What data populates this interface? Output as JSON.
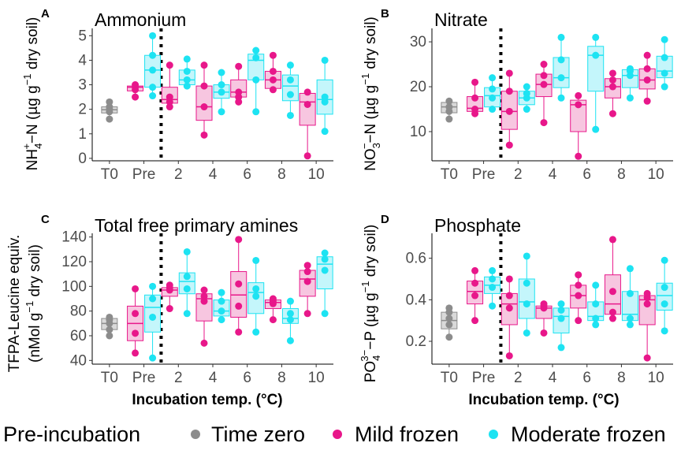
{
  "legend": {
    "title": "Pre-incubation",
    "items": [
      {
        "name": "Time zero",
        "color": "#8c8c8c"
      },
      {
        "name": "Mild frozen",
        "color": "#e8178a"
      },
      {
        "name": "Moderate frozen",
        "color": "#1de3f2"
      }
    ]
  },
  "chart_data": [
    {
      "type": "box",
      "letter": "A",
      "title": "Ammonium",
      "ylabel": "NH₄⁺−N (µg g⁻¹ dry soil)",
      "ylabel_parts": [
        "NH",
        "4",
        "+",
        "−N (µg g",
        "−1",
        " dry soil)"
      ],
      "xlabel": "",
      "categories": [
        "T0",
        "Pre",
        "2",
        "4",
        "6",
        "8",
        "10"
      ],
      "ylim": [
        -0.1,
        5.3
      ],
      "yticks": [
        0,
        1,
        2,
        3,
        4,
        5
      ],
      "divider_after": "Pre",
      "groups": [
        {
          "category": "T0",
          "series": "Time zero",
          "min": 1.6,
          "q1": 1.85,
          "median": 1.98,
          "q3": 2.1,
          "max": 2.3,
          "points": [
            1.6,
            1.9,
            2.0,
            2.1,
            2.3
          ]
        },
        {
          "category": "Pre",
          "series": "Mild frozen",
          "min": 2.5,
          "q1": 2.75,
          "median": 2.9,
          "q3": 2.95,
          "max": 3.0,
          "points": [
            2.5,
            2.8,
            2.9,
            3.0
          ]
        },
        {
          "category": "Pre",
          "series": "Moderate frozen",
          "min": 2.55,
          "q1": 2.9,
          "median": 3.6,
          "q3": 4.2,
          "max": 5.0,
          "points": [
            2.55,
            2.9,
            3.6,
            4.2,
            5.0
          ]
        },
        {
          "category": "2",
          "series": "Mild frozen",
          "min": 2.1,
          "q1": 2.25,
          "median": 2.4,
          "q3": 2.9,
          "max": 3.8,
          "points": [
            2.1,
            2.3,
            2.5,
            3.8
          ]
        },
        {
          "category": "2",
          "series": "Moderate frozen",
          "min": 2.95,
          "q1": 3.0,
          "median": 3.2,
          "q3": 3.6,
          "max": 4.05,
          "points": [
            2.95,
            3.2,
            3.55,
            4.05
          ]
        },
        {
          "category": "4",
          "series": "Mild frozen",
          "min": 0.95,
          "q1": 1.55,
          "median": 2.1,
          "q3": 2.95,
          "max": 3.8,
          "points": [
            0.95,
            2.1,
            2.95,
            3.8
          ]
        },
        {
          "category": "4",
          "series": "Moderate frozen",
          "min": 1.9,
          "q1": 2.45,
          "median": 2.7,
          "q3": 3.0,
          "max": 3.5,
          "points": [
            1.9,
            2.7,
            3.0,
            3.5
          ]
        },
        {
          "category": "6",
          "series": "Mild frozen",
          "min": 2.3,
          "q1": 2.5,
          "median": 2.7,
          "q3": 3.2,
          "max": 3.75,
          "points": [
            2.3,
            2.5,
            2.7,
            3.75
          ]
        },
        {
          "category": "6",
          "series": "Moderate frozen",
          "min": 1.9,
          "q1": 3.2,
          "median": 4.0,
          "q3": 4.25,
          "max": 4.4,
          "points": [
            1.9,
            3.2,
            4.1,
            4.4
          ]
        },
        {
          "category": "8",
          "series": "Mild frozen",
          "min": 2.8,
          "q1": 2.85,
          "median": 3.2,
          "q3": 3.55,
          "max": 4.2,
          "points": [
            2.8,
            3.2,
            3.55,
            4.2
          ]
        },
        {
          "category": "8",
          "series": "Moderate frozen",
          "min": 1.75,
          "q1": 2.35,
          "median": 2.95,
          "q3": 3.4,
          "max": 3.8,
          "points": [
            1.75,
            2.6,
            3.2,
            3.8
          ]
        },
        {
          "category": "10",
          "series": "Mild frozen",
          "min": 0.1,
          "q1": 1.35,
          "median": 2.3,
          "q3": 2.65,
          "max": 2.7,
          "points": [
            0.1,
            2.2,
            2.7
          ]
        },
        {
          "category": "10",
          "series": "Moderate frozen",
          "min": 1.1,
          "q1": 1.8,
          "median": 2.4,
          "q3": 3.2,
          "max": 4.0,
          "points": [
            1.1,
            2.3,
            2.5,
            4.0
          ]
        }
      ]
    },
    {
      "type": "box",
      "letter": "B",
      "title": "Nitrate",
      "ylabel": "NO₃⁻−N (µg g⁻¹ dry soil)",
      "ylabel_parts": [
        "NO",
        "3",
        "−",
        "−N (µg g",
        "−1",
        " dry soil)"
      ],
      "xlabel": "",
      "categories": [
        "T0",
        "Pre",
        "2",
        "4",
        "6",
        "8",
        "10"
      ],
      "ylim": [
        3.5,
        33
      ],
      "yticks": [
        10,
        20,
        30
      ],
      "divider_after": "Pre",
      "groups": [
        {
          "category": "T0",
          "series": "Time zero",
          "min": 12.8,
          "q1": 14.2,
          "median": 15.5,
          "q3": 16.5,
          "max": 17.0,
          "points": [
            12.8,
            14.5,
            15.5,
            16.8
          ]
        },
        {
          "category": "Pre",
          "series": "Mild frozen",
          "min": 14.0,
          "q1": 14.5,
          "median": 15.2,
          "q3": 17.8,
          "max": 21.0,
          "points": [
            14.0,
            15.0,
            17.5,
            21.0
          ]
        },
        {
          "category": "Pre",
          "series": "Moderate frozen",
          "min": 15.0,
          "q1": 15.5,
          "median": 18.0,
          "q3": 19.8,
          "max": 22.0,
          "points": [
            15.0,
            17.5,
            19.5,
            22.0
          ]
        },
        {
          "category": "2",
          "series": "Mild frozen",
          "min": 7.0,
          "q1": 10.5,
          "median": 14.5,
          "q3": 19.0,
          "max": 23.0,
          "points": [
            7.0,
            14.5,
            19.0,
            23.0
          ]
        },
        {
          "category": "2",
          "series": "Moderate frozen",
          "min": 15.0,
          "q1": 16.0,
          "median": 17.5,
          "q3": 19.0,
          "max": 20.0,
          "points": [
            15.0,
            17.5,
            18.5,
            20.0
          ]
        },
        {
          "category": "4",
          "series": "Mild frozen",
          "min": 12.0,
          "q1": 17.8,
          "median": 20.5,
          "q3": 22.8,
          "max": 25.0,
          "points": [
            12.0,
            20.5,
            22.5,
            25.0
          ]
        },
        {
          "category": "4",
          "series": "Moderate frozen",
          "min": 17.5,
          "q1": 19.8,
          "median": 22.0,
          "q3": 26.5,
          "max": 31.0,
          "points": [
            17.5,
            22.0,
            26.0,
            31.0
          ]
        },
        {
          "category": "6",
          "series": "Mild frozen",
          "min": 4.5,
          "q1": 10.0,
          "median": 16.0,
          "q3": 17.0,
          "max": 18.0,
          "points": [
            4.5,
            16.0,
            18.0
          ]
        },
        {
          "category": "6",
          "series": "Moderate frozen",
          "min": 10.5,
          "q1": 19.0,
          "median": 27.0,
          "q3": 29.0,
          "max": 31.0,
          "points": [
            10.5,
            27.0,
            31.0
          ]
        },
        {
          "category": "8",
          "series": "Mild frozen",
          "min": 14.0,
          "q1": 17.5,
          "median": 20.0,
          "q3": 21.8,
          "max": 23.0,
          "points": [
            14.0,
            20.0,
            21.5,
            23.0
          ]
        },
        {
          "category": "8",
          "series": "Moderate frozen",
          "min": 17.5,
          "q1": 19.8,
          "median": 22.5,
          "q3": 23.8,
          "max": 24.0,
          "points": [
            17.5,
            22.5,
            23.5,
            24.0
          ]
        },
        {
          "category": "10",
          "series": "Mild frozen",
          "min": 16.8,
          "q1": 19.5,
          "median": 21.5,
          "q3": 24.0,
          "max": 27.0,
          "points": [
            16.8,
            21.5,
            24.0,
            27.0
          ]
        },
        {
          "category": "10",
          "series": "Moderate frozen",
          "min": 20.0,
          "q1": 22.0,
          "median": 23.5,
          "q3": 26.8,
          "max": 30.5,
          "points": [
            20.0,
            23.0,
            26.5,
            30.5
          ]
        }
      ]
    },
    {
      "type": "box",
      "letter": "C",
      "title": "Total free primary amines",
      "ylabel": "TFPA-Leucine equiv. (nMol g⁻¹ dry soil)",
      "ylabel_line1": "TFPA-Leucine equiv.",
      "ylabel_parts": [
        "",
        "",
        "",
        "(nMol g",
        "−1",
        " dry soil)"
      ],
      "xlabel": "Incubation temp. (°C)",
      "categories": [
        "T0",
        "Pre",
        "2",
        "4",
        "6",
        "8",
        "10"
      ],
      "ylim": [
        37,
        143
      ],
      "yticks": [
        40,
        60,
        80,
        100,
        120,
        140
      ],
      "divider_after": "Pre",
      "groups": [
        {
          "category": "T0",
          "series": "Time zero",
          "min": 60,
          "q1": 65,
          "median": 70,
          "q3": 74,
          "max": 75,
          "points": [
            60,
            65,
            70,
            73,
            75
          ]
        },
        {
          "category": "Pre",
          "series": "Mild frozen",
          "min": 46,
          "q1": 56,
          "median": 70,
          "q3": 84,
          "max": 98,
          "points": [
            46,
            62,
            78,
            98
          ]
        },
        {
          "category": "Pre",
          "series": "Moderate frozen",
          "min": 42,
          "q1": 63,
          "median": 83,
          "q3": 93,
          "max": 100,
          "points": [
            42,
            75,
            90,
            100
          ]
        },
        {
          "category": "2",
          "series": "Mild frozen",
          "min": 82,
          "q1": 92,
          "median": 97,
          "q3": 99,
          "max": 101,
          "points": [
            82,
            97,
            99,
            101
          ]
        },
        {
          "category": "2",
          "series": "Moderate frozen",
          "min": 78,
          "q1": 94,
          "median": 104,
          "q3": 111,
          "max": 128,
          "points": [
            78,
            98,
            108,
            128
          ]
        },
        {
          "category": "4",
          "series": "Mild frozen",
          "min": 54,
          "q1": 72,
          "median": 90,
          "q3": 94,
          "max": 97,
          "points": [
            54,
            88,
            92,
            97
          ]
        },
        {
          "category": "4",
          "series": "Moderate frozen",
          "min": 73,
          "q1": 76,
          "median": 80,
          "q3": 89,
          "max": 95,
          "points": [
            73,
            80,
            88,
            95
          ]
        },
        {
          "category": "6",
          "series": "Mild frozen",
          "min": 63,
          "q1": 75,
          "median": 93,
          "q3": 112,
          "max": 138,
          "points": [
            63,
            84,
            102,
            138
          ]
        },
        {
          "category": "6",
          "series": "Moderate frozen",
          "min": 63,
          "q1": 78,
          "median": 95,
          "q3": 103,
          "max": 121,
          "points": [
            63,
            92,
            98,
            121
          ]
        },
        {
          "category": "8",
          "series": "Mild frozen",
          "min": 73,
          "q1": 82,
          "median": 87,
          "q3": 89,
          "max": 90,
          "points": [
            73,
            86,
            88,
            90
          ]
        },
        {
          "category": "8",
          "series": "Moderate frozen",
          "min": 56,
          "q1": 70,
          "median": 74,
          "q3": 82,
          "max": 88,
          "points": [
            56,
            73,
            78,
            88
          ]
        },
        {
          "category": "10",
          "series": "Mild frozen",
          "min": 78,
          "q1": 92,
          "median": 106,
          "q3": 113,
          "max": 117,
          "points": [
            78,
            104,
            112,
            117
          ]
        },
        {
          "category": "10",
          "series": "Moderate frozen",
          "min": 78,
          "q1": 98,
          "median": 118,
          "q3": 124,
          "max": 127,
          "points": [
            78,
            113,
            122,
            127
          ]
        }
      ]
    },
    {
      "type": "box",
      "letter": "D",
      "title": "Phosphate",
      "ylabel": "PO₄³⁻−P (µg g⁻¹ dry soil)",
      "ylabel_parts": [
        "PO",
        "4",
        "3−",
        "−P (µg g",
        "−1",
        " dry soil)"
      ],
      "xlabel": "Incubation temp. (°C)",
      "categories": [
        "T0",
        "Pre",
        "2",
        "4",
        "6",
        "8",
        "10"
      ],
      "ylim": [
        0.09,
        0.72
      ],
      "yticks": [
        0.2,
        0.4,
        0.6
      ],
      "divider_after": "Pre",
      "groups": [
        {
          "category": "T0",
          "series": "Time zero",
          "min": 0.22,
          "q1": 0.26,
          "median": 0.3,
          "q3": 0.34,
          "max": 0.36,
          "points": [
            0.22,
            0.28,
            0.31,
            0.34,
            0.36
          ]
        },
        {
          "category": "Pre",
          "series": "Mild frozen",
          "min": 0.3,
          "q1": 0.38,
          "median": 0.44,
          "q3": 0.49,
          "max": 0.54,
          "points": [
            0.3,
            0.42,
            0.48,
            0.54
          ]
        },
        {
          "category": "Pre",
          "series": "Moderate frozen",
          "min": 0.37,
          "q1": 0.43,
          "median": 0.47,
          "q3": 0.51,
          "max": 0.54,
          "points": [
            0.37,
            0.46,
            0.5,
            0.54
          ]
        },
        {
          "category": "2",
          "series": "Mild frozen",
          "min": 0.13,
          "q1": 0.28,
          "median": 0.38,
          "q3": 0.43,
          "max": 0.5,
          "points": [
            0.13,
            0.36,
            0.42,
            0.5
          ]
        },
        {
          "category": "2",
          "series": "Moderate frozen",
          "min": 0.24,
          "q1": 0.31,
          "median": 0.39,
          "q3": 0.5,
          "max": 0.61,
          "points": [
            0.24,
            0.38,
            0.48,
            0.61
          ]
        },
        {
          "category": "4",
          "series": "Mild frozen",
          "min": 0.24,
          "q1": 0.31,
          "median": 0.36,
          "q3": 0.37,
          "max": 0.38,
          "points": [
            0.24,
            0.36,
            0.37,
            0.38
          ]
        },
        {
          "category": "4",
          "series": "Moderate frozen",
          "min": 0.17,
          "q1": 0.24,
          "median": 0.32,
          "q3": 0.36,
          "max": 0.38,
          "points": [
            0.17,
            0.31,
            0.35,
            0.38
          ]
        },
        {
          "category": "6",
          "series": "Mild frozen",
          "min": 0.3,
          "q1": 0.36,
          "median": 0.42,
          "q3": 0.47,
          "max": 0.52,
          "points": [
            0.3,
            0.42,
            0.47,
            0.52
          ]
        },
        {
          "category": "6",
          "series": "Moderate frozen",
          "min": 0.28,
          "q1": 0.3,
          "median": 0.32,
          "q3": 0.39,
          "max": 0.47,
          "points": [
            0.28,
            0.31,
            0.38,
            0.47
          ]
        },
        {
          "category": "8",
          "series": "Mild frozen",
          "min": 0.31,
          "q1": 0.33,
          "median": 0.38,
          "q3": 0.52,
          "max": 0.69,
          "points": [
            0.31,
            0.34,
            0.44,
            0.69
          ]
        },
        {
          "category": "8",
          "series": "Moderate frozen",
          "min": 0.28,
          "q1": 0.3,
          "median": 0.33,
          "q3": 0.44,
          "max": 0.55,
          "points": [
            0.28,
            0.31,
            0.43,
            0.55
          ]
        },
        {
          "category": "10",
          "series": "Mild frozen",
          "min": 0.12,
          "q1": 0.28,
          "median": 0.4,
          "q3": 0.42,
          "max": 0.43,
          "points": [
            0.12,
            0.38,
            0.41,
            0.43
          ]
        },
        {
          "category": "10",
          "series": "Moderate frozen",
          "min": 0.25,
          "q1": 0.35,
          "median": 0.42,
          "q3": 0.48,
          "max": 0.59,
          "points": [
            0.25,
            0.38,
            0.46,
            0.59
          ]
        }
      ]
    }
  ]
}
